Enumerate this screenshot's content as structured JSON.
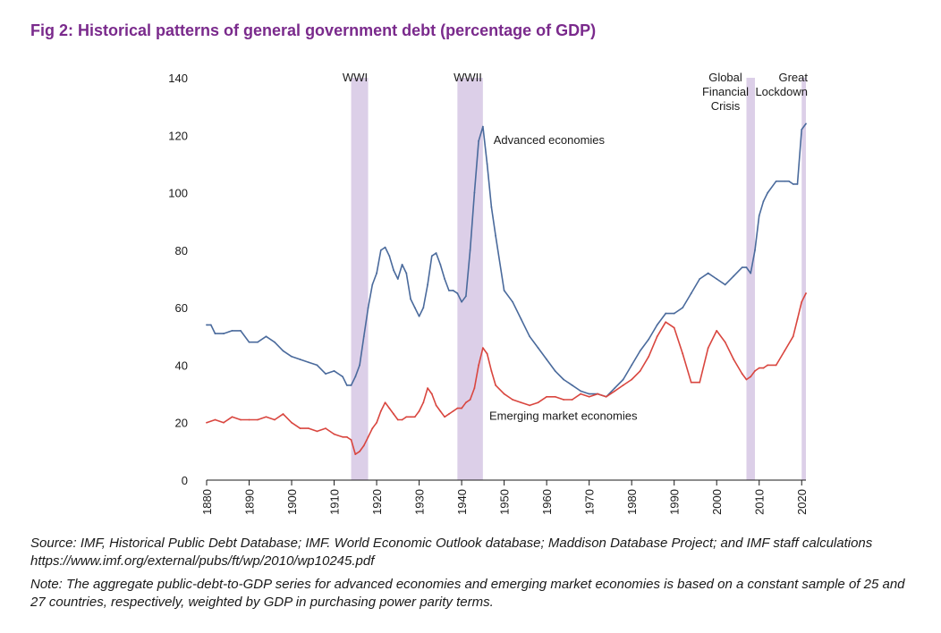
{
  "title": "Fig 2: Historical patterns of general government debt (percentage of GDP)",
  "source_text": "Source: IMF, Historical Public Debt Database; IMF. World Economic Outlook database; Maddison Database Project; and IMF staff calculations https://www.imf.org/external/pubs/ft/wp/2010/wp10245.pdf",
  "note_text": "Note: The aggregate public-debt-to-GDP series for advanced economies and emerging market economies is based on a constant sample of 25 and 27 countries, respectively, weighted by GDP in purchasing power parity terms.",
  "colors": {
    "advanced": "#4a6a9c",
    "emerging": "#d9463f",
    "shade": "#dccfe8",
    "title": "#7a2a8c"
  },
  "chart_data": {
    "type": "line",
    "xlim": [
      1880,
      2021
    ],
    "ylim": [
      0,
      140
    ],
    "xticks": [
      1880,
      1890,
      1900,
      1910,
      1920,
      1930,
      1940,
      1950,
      1960,
      1970,
      1980,
      1990,
      2000,
      2010,
      2020
    ],
    "yticks": [
      0,
      20,
      40,
      60,
      80,
      100,
      120,
      140
    ],
    "grid": false,
    "shaded_periods": [
      {
        "label": "WWI",
        "start": 1914,
        "end": 1918
      },
      {
        "label": "WWII",
        "start": 1939,
        "end": 1945
      },
      {
        "label": "Global Financial Crisis",
        "start": 2007,
        "end": 2009
      },
      {
        "label": "Great Lockdown",
        "start": 2020,
        "end": 2021
      }
    ],
    "series": [
      {
        "name": "Advanced economies",
        "x": [
          1880,
          1881,
          1882,
          1884,
          1886,
          1888,
          1890,
          1892,
          1894,
          1896,
          1898,
          1900,
          1902,
          1904,
          1906,
          1908,
          1910,
          1912,
          1913,
          1914,
          1915,
          1916,
          1917,
          1918,
          1919,
          1920,
          1921,
          1922,
          1923,
          1924,
          1925,
          1926,
          1927,
          1928,
          1929,
          1930,
          1931,
          1932,
          1933,
          1934,
          1935,
          1936,
          1937,
          1938,
          1939,
          1940,
          1941,
          1942,
          1943,
          1944,
          1945,
          1946,
          1947,
          1948,
          1950,
          1952,
          1954,
          1956,
          1958,
          1960,
          1962,
          1964,
          1966,
          1968,
          1970,
          1972,
          1974,
          1976,
          1978,
          1980,
          1982,
          1984,
          1986,
          1988,
          1990,
          1992,
          1994,
          1996,
          1998,
          2000,
          2002,
          2004,
          2006,
          2007,
          2008,
          2009,
          2010,
          2011,
          2012,
          2014,
          2016,
          2017,
          2018,
          2019,
          2020,
          2021
        ],
        "values": [
          54,
          54,
          51,
          51,
          52,
          52,
          48,
          48,
          50,
          48,
          45,
          43,
          42,
          41,
          40,
          37,
          38,
          36,
          33,
          33,
          36,
          40,
          50,
          60,
          68,
          72,
          80,
          81,
          78,
          73,
          70,
          75,
          72,
          63,
          60,
          57,
          60,
          68,
          78,
          79,
          75,
          70,
          66,
          66,
          65,
          62,
          64,
          80,
          100,
          118,
          123,
          110,
          95,
          85,
          66,
          62,
          56,
          50,
          46,
          42,
          38,
          35,
          33,
          31,
          30,
          30,
          29,
          32,
          35,
          40,
          45,
          49,
          54,
          58,
          58,
          60,
          65,
          70,
          72,
          70,
          68,
          71,
          74,
          74,
          72,
          80,
          92,
          97,
          100,
          104,
          104,
          104,
          103,
          103,
          122,
          124
        ]
      },
      {
        "name": "Emerging market economies",
        "x": [
          1880,
          1882,
          1884,
          1886,
          1888,
          1890,
          1892,
          1894,
          1896,
          1898,
          1900,
          1902,
          1904,
          1906,
          1908,
          1910,
          1912,
          1913,
          1914,
          1915,
          1916,
          1917,
          1918,
          1919,
          1920,
          1921,
          1922,
          1923,
          1924,
          1925,
          1926,
          1927,
          1928,
          1929,
          1930,
          1931,
          1932,
          1933,
          1934,
          1935,
          1936,
          1937,
          1938,
          1939,
          1940,
          1941,
          1942,
          1943,
          1944,
          1945,
          1946,
          1947,
          1948,
          1950,
          1952,
          1954,
          1956,
          1958,
          1960,
          1962,
          1964,
          1966,
          1968,
          1970,
          1972,
          1974,
          1976,
          1978,
          1980,
          1982,
          1984,
          1986,
          1988,
          1990,
          1992,
          1994,
          1996,
          1998,
          2000,
          2002,
          2004,
          2006,
          2007,
          2008,
          2009,
          2010,
          2011,
          2012,
          2014,
          2016,
          2018,
          2019,
          2020,
          2021
        ],
        "values": [
          20,
          21,
          20,
          22,
          21,
          21,
          21,
          22,
          21,
          23,
          20,
          18,
          18,
          17,
          18,
          16,
          15,
          15,
          14,
          9,
          10,
          12,
          15,
          18,
          20,
          24,
          27,
          25,
          23,
          21,
          21,
          22,
          22,
          22,
          24,
          27,
          32,
          30,
          26,
          24,
          22,
          23,
          24,
          25,
          25,
          27,
          28,
          32,
          40,
          46,
          44,
          38,
          33,
          30,
          28,
          27,
          26,
          27,
          29,
          29,
          28,
          28,
          30,
          29,
          30,
          29,
          31,
          33,
          35,
          38,
          43,
          50,
          55,
          53,
          44,
          34,
          34,
          46,
          52,
          48,
          42,
          37,
          35,
          36,
          38,
          39,
          39,
          40,
          40,
          45,
          50,
          56,
          62,
          65
        ]
      }
    ],
    "annotations": [
      {
        "text": "Advanced economies",
        "x": 1947.5,
        "y": 117
      },
      {
        "text": "Emerging market economies",
        "x": 1946.5,
        "y": 21
      }
    ]
  }
}
